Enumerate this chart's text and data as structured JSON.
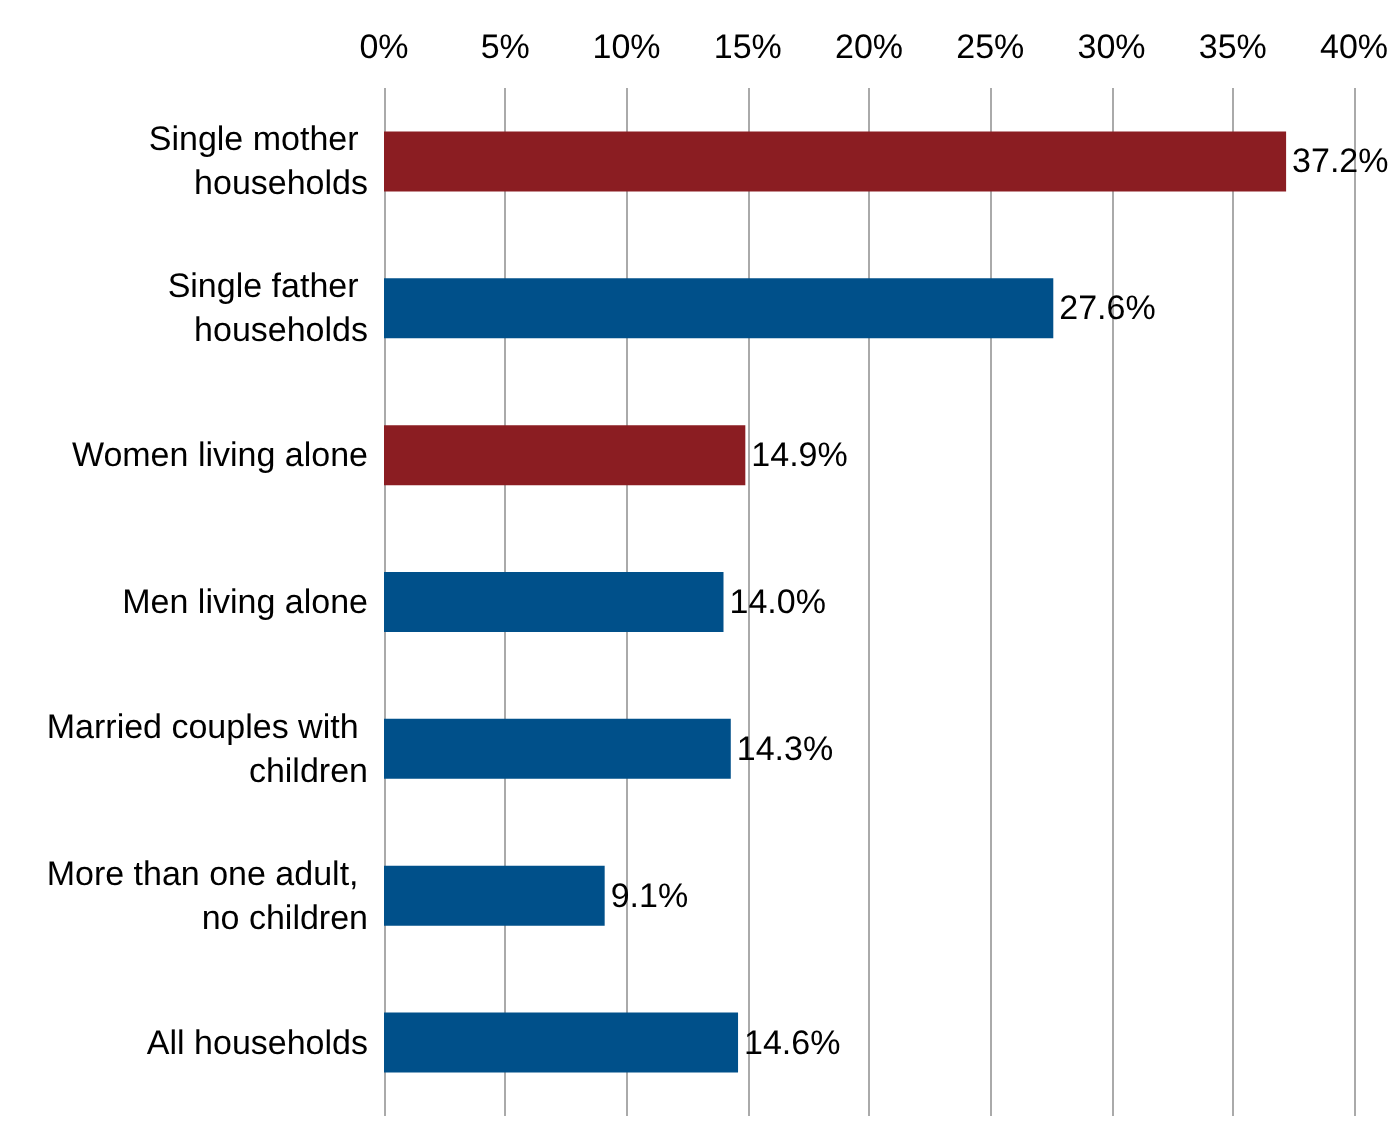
{
  "chart_data": {
    "type": "bar",
    "orientation": "horizontal",
    "categories": [
      "Single mother households",
      "Single father households",
      "Women living alone",
      "Men living alone",
      "Married couples with children",
      "More than one adult, no children",
      "All households"
    ],
    "values": [
      37.2,
      27.6,
      14.9,
      14.0,
      14.3,
      9.1,
      14.6
    ],
    "colors": [
      "#8b1d22",
      "#00508a",
      "#8b1d22",
      "#00508a",
      "#00508a",
      "#00508a",
      "#00508a"
    ],
    "value_labels": [
      "37.2%",
      "27.6%",
      "14.9%",
      "14.0%",
      "14.3%",
      "9.1%",
      "14.6%"
    ],
    "xlim": [
      0,
      40
    ],
    "xticks": [
      {
        "value": 0,
        "label": "0%"
      },
      {
        "value": 5,
        "label": "5%"
      },
      {
        "value": 10,
        "label": "10%"
      },
      {
        "value": 15,
        "label": "15%"
      },
      {
        "value": 20,
        "label": "20%"
      },
      {
        "value": 25,
        "label": "25%"
      },
      {
        "value": 30,
        "label": "30%"
      },
      {
        "value": 35,
        "label": "35%"
      },
      {
        "value": 40,
        "label": "40%"
      }
    ],
    "grid": "x"
  }
}
